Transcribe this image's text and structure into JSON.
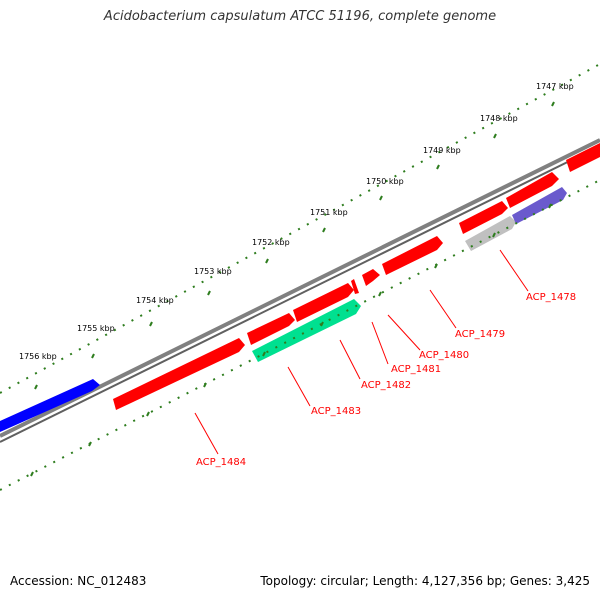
{
  "title": "Acidobacterium capsulatum ATCC 51196, complete genome",
  "footer": {
    "accession": "Accession: NC_012483",
    "summary": "Topology: circular; Length: 4,127,356 bp; Genes: 3,425"
  },
  "colors": {
    "background": "#ffffff",
    "backbone": "#808080",
    "tick_marks": "#2e7d1e",
    "gene_red": "#ff0000",
    "gene_blue": "#0000ff",
    "gene_green": "#00e090",
    "gene_gray": "#c0c0c0",
    "gene_purple": "#6a5acd",
    "label_red": "#ff0000"
  },
  "scale": {
    "labels": [
      "1747 kbp",
      "1748 kbp",
      "1749 kbp",
      "1750 kbp",
      "1751 kbp",
      "1752 kbp",
      "1753 kbp",
      "1754 kbp",
      "1755 kbp",
      "1756 kbp"
    ]
  },
  "gene_labels": [
    "ACP_1478",
    "ACP_1479",
    "ACP_1480",
    "ACP_1481",
    "ACP_1482",
    "ACP_1483",
    "ACP_1484"
  ]
}
